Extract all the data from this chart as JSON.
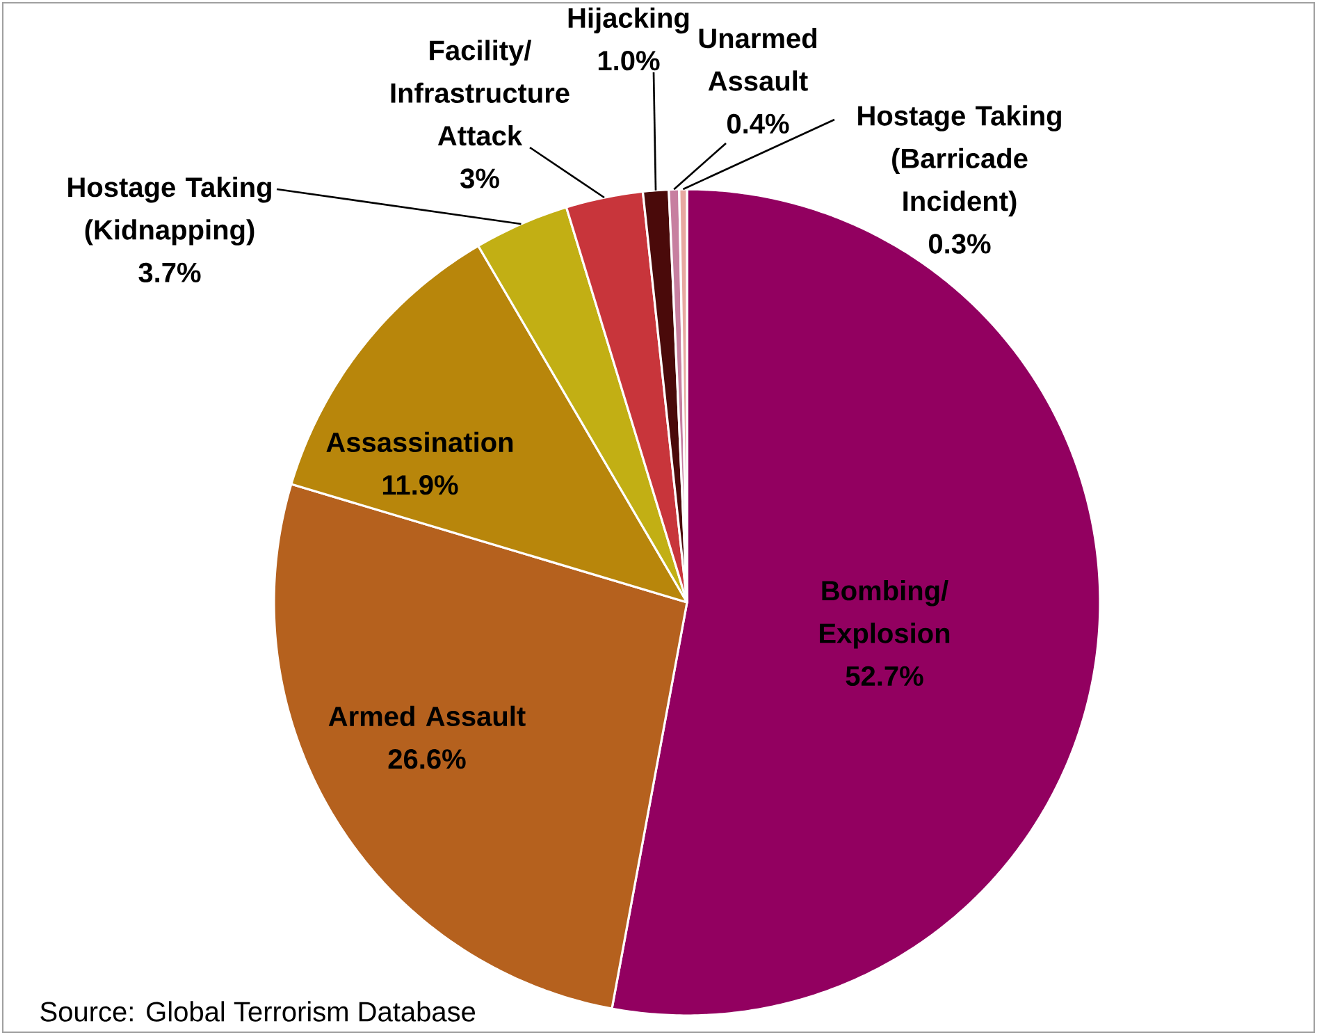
{
  "chart_data": {
    "type": "pie",
    "categories": [
      "Bombing/ Explosion",
      "Armed Assault",
      "Assassination",
      "Hostage Taking (Kidnapping)",
      "Facility/ Infrastructure Attack",
      "Hijacking",
      "Unarmed Assault",
      "Hostage Taking (Barricade Incident)"
    ],
    "values": [
      52.7,
      26.6,
      11.9,
      3.7,
      3,
      1.0,
      0.4,
      0.3
    ],
    "value_labels": [
      "52.7%",
      "26.6%",
      "11.9%",
      "3.7%",
      "3%",
      "1.0%",
      "0.4%",
      "0.3%"
    ],
    "colors": [
      "#920060",
      "#B5611E",
      "#B8860B",
      "#C2AF14",
      "#C8353B",
      "#4A0A0A",
      "#C77FA0",
      "#E8A8A0"
    ],
    "annotations": [
      "Source: Global Terrorism Database"
    ]
  }
}
